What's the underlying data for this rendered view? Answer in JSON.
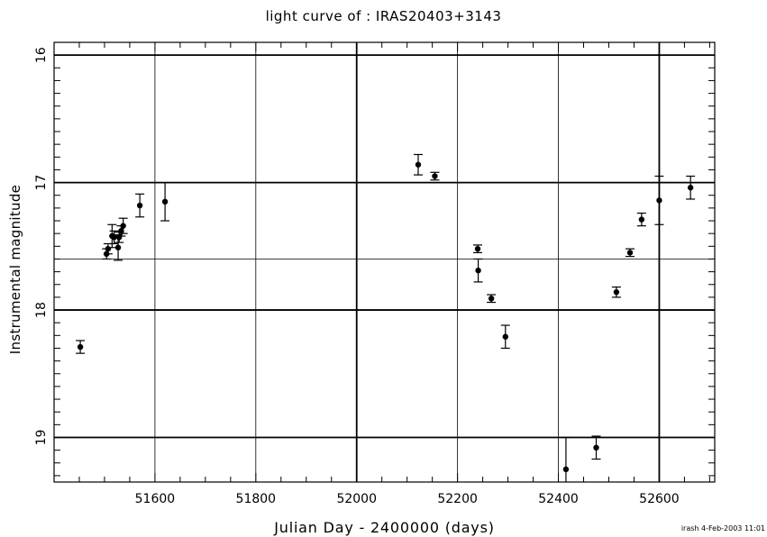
{
  "chart_data": {
    "type": "scatter",
    "title": "light curve of : IRAS20403+3143",
    "xlabel": "Julian Day - 2400000 (days)",
    "ylabel": "Instrumental magnitude",
    "xlim": [
      51400,
      52710
    ],
    "ylim": [
      19.35,
      15.9
    ],
    "y_inverted": true,
    "x_ticks": [
      51600,
      51800,
      52000,
      52200,
      52400,
      52600
    ],
    "y_ticks": [
      16,
      17,
      18,
      19
    ],
    "x_gridlines": [
      51600,
      51800,
      52000,
      52200,
      52400,
      52600
    ],
    "y_gridlines": [
      16,
      17,
      17.6,
      18,
      19
    ],
    "grid": true,
    "points": [
      {
        "x": 51452,
        "y": 18.29,
        "err": 0.05
      },
      {
        "x": 51504,
        "y": 17.56,
        "err": 0.04
      },
      {
        "x": 51507,
        "y": 17.52,
        "err": 0.04
      },
      {
        "x": 51515,
        "y": 17.42,
        "err": 0.09
      },
      {
        "x": 51519,
        "y": 17.43,
        "err": 0.05
      },
      {
        "x": 51527,
        "y": 17.51,
        "err": 0.1
      },
      {
        "x": 51529,
        "y": 17.43,
        "err": 0.04
      },
      {
        "x": 51533,
        "y": 17.38,
        "err": 0.04
      },
      {
        "x": 51537,
        "y": 17.34,
        "err": 0.06
      },
      {
        "x": 51570,
        "y": 17.18,
        "err": 0.09
      },
      {
        "x": 51620,
        "y": 17.15,
        "err": 0.15
      },
      {
        "x": 52122,
        "y": 16.86,
        "err": 0.08
      },
      {
        "x": 52155,
        "y": 16.95,
        "err": 0.03
      },
      {
        "x": 52240,
        "y": 17.52,
        "err": 0.03
      },
      {
        "x": 52241,
        "y": 17.69,
        "err": 0.09
      },
      {
        "x": 52267,
        "y": 17.91,
        "err": 0.03
      },
      {
        "x": 52295,
        "y": 18.21,
        "err": 0.09
      },
      {
        "x": 52415,
        "y": 19.25,
        "err": 0.25
      },
      {
        "x": 52475,
        "y": 19.08,
        "err": 0.09
      },
      {
        "x": 52515,
        "y": 17.86,
        "err": 0.04
      },
      {
        "x": 52542,
        "y": 17.55,
        "err": 0.03
      },
      {
        "x": 52565,
        "y": 17.29,
        "err": 0.05
      },
      {
        "x": 52600,
        "y": 17.14,
        "err": 0.19
      },
      {
        "x": 52662,
        "y": 17.04,
        "err": 0.09
      }
    ]
  },
  "footer": {
    "stamp": "irash  4-Feb-2003 11:01"
  }
}
